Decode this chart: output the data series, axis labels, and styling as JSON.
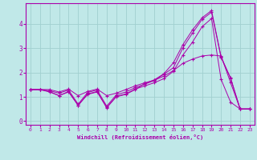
{
  "xlabel": "Windchill (Refroidissement éolien,°C)",
  "bg_color": "#c0e8e8",
  "grid_color": "#a0d0d0",
  "line_color": "#aa00aa",
  "xlim": [
    -0.5,
    23.5
  ],
  "ylim": [
    -0.15,
    4.85
  ],
  "xticks": [
    0,
    1,
    2,
    3,
    4,
    5,
    6,
    7,
    8,
    9,
    10,
    11,
    12,
    13,
    14,
    15,
    16,
    17,
    18,
    19,
    20,
    21,
    22,
    23
  ],
  "yticks": [
    0,
    1,
    2,
    3,
    4
  ],
  "line1_x": [
    0,
    1,
    2,
    3,
    4,
    5,
    6,
    7,
    8,
    9,
    10,
    11,
    12,
    13,
    14,
    15,
    16,
    17,
    18,
    19,
    20,
    21,
    22,
    23
  ],
  "line1_y": [
    1.3,
    1.3,
    1.2,
    1.05,
    1.2,
    0.65,
    1.1,
    1.2,
    0.55,
    1.0,
    1.1,
    1.3,
    1.55,
    1.7,
    1.95,
    2.4,
    3.15,
    3.75,
    4.25,
    4.55,
    2.65,
    1.75,
    0.5,
    0.5
  ],
  "line2_x": [
    0,
    1,
    2,
    3,
    4,
    5,
    6,
    7,
    8,
    9,
    10,
    11,
    12,
    13,
    14,
    15,
    16,
    17,
    18,
    19,
    20,
    21,
    22,
    23
  ],
  "line2_y": [
    1.3,
    1.3,
    1.25,
    1.15,
    1.28,
    0.7,
    1.18,
    1.28,
    0.62,
    1.08,
    1.2,
    1.38,
    1.52,
    1.67,
    1.93,
    2.2,
    3.02,
    3.62,
    4.18,
    4.48,
    2.62,
    1.78,
    0.5,
    0.5
  ],
  "line3_x": [
    0,
    1,
    2,
    3,
    4,
    5,
    6,
    7,
    8,
    9,
    10,
    11,
    12,
    13,
    14,
    15,
    16,
    17,
    18,
    19,
    20,
    21,
    22,
    23
  ],
  "line3_y": [
    1.3,
    1.3,
    1.3,
    1.2,
    1.32,
    1.05,
    1.22,
    1.32,
    1.05,
    1.15,
    1.3,
    1.45,
    1.58,
    1.68,
    1.85,
    2.08,
    2.38,
    2.55,
    2.68,
    2.72,
    2.68,
    1.58,
    0.5,
    0.5
  ],
  "line4_x": [
    0,
    1,
    2,
    3,
    4,
    5,
    6,
    7,
    8,
    9,
    10,
    11,
    12,
    13,
    14,
    15,
    16,
    17,
    18,
    19,
    20,
    21,
    22,
    23
  ],
  "line4_y": [
    1.3,
    1.3,
    1.22,
    1.05,
    1.22,
    0.65,
    1.12,
    1.22,
    0.56,
    1.02,
    1.12,
    1.32,
    1.45,
    1.58,
    1.75,
    2.05,
    2.72,
    3.25,
    3.88,
    4.22,
    1.72,
    0.78,
    0.5,
    0.5
  ]
}
